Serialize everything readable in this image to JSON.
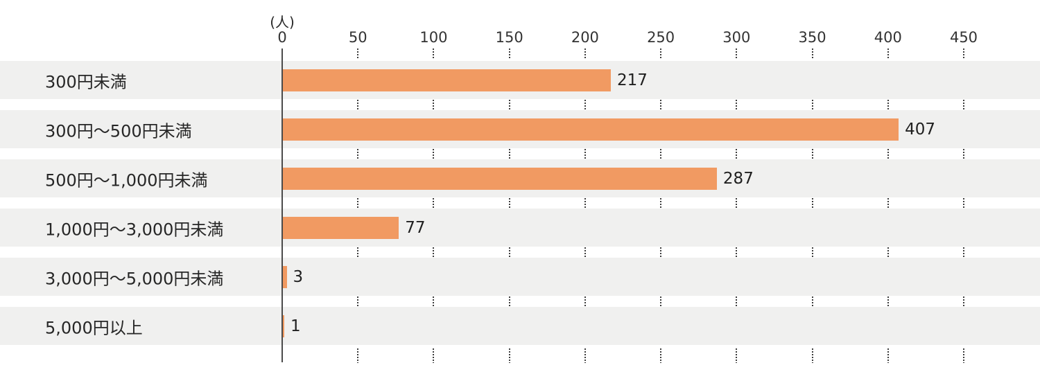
{
  "chart_data": {
    "type": "bar",
    "orientation": "horizontal",
    "title": "",
    "unit_label": "(人)",
    "categories": [
      "300円未満",
      "300円〜500円未満",
      "500円〜1,000円未満",
      "1,000円〜3,000円未満",
      "3,000円〜5,000円未満",
      "5,000円以上"
    ],
    "values": [
      217,
      407,
      287,
      77,
      3,
      1
    ],
    "value_labels": [
      "217",
      "407",
      "287",
      "77",
      "3",
      "1"
    ],
    "x_ticks": [
      "0",
      "50",
      "100",
      "150",
      "200",
      "250",
      "300",
      "350",
      "400",
      "450"
    ],
    "xlim": [
      0,
      450
    ],
    "grid": "dotted-vertical",
    "legend": "none",
    "colors": {
      "bar": "#F19A62",
      "row_band": "#F0F0EF",
      "axis_line": "#4A4A4A",
      "grid_dots": "#3C3C3C",
      "text": "#262626"
    }
  }
}
